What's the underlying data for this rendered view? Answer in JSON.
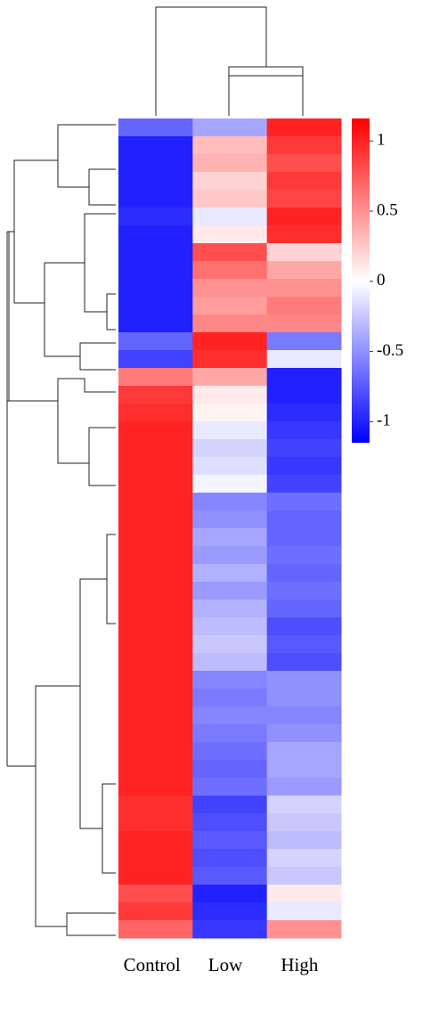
{
  "chart_data": {
    "type": "heatmap",
    "x": [
      "Control",
      "Low",
      "High"
    ],
    "values": [
      [
        -0.7,
        -0.4,
        1.0
      ],
      [
        -1.0,
        0.3,
        0.9
      ],
      [
        -1.0,
        0.35,
        0.8
      ],
      [
        -1.0,
        0.2,
        0.9
      ],
      [
        -1.0,
        0.25,
        0.85
      ],
      [
        -0.95,
        -0.1,
        1.0
      ],
      [
        -1.0,
        0.1,
        0.95
      ],
      [
        -1.0,
        0.8,
        0.2
      ],
      [
        -1.0,
        0.65,
        0.4
      ],
      [
        -1.0,
        0.5,
        0.5
      ],
      [
        -1.0,
        0.45,
        0.6
      ],
      [
        -1.0,
        0.55,
        0.55
      ],
      [
        -0.7,
        1.0,
        -0.6
      ],
      [
        -0.85,
        0.95,
        -0.1
      ],
      [
        0.6,
        0.4,
        -1.0
      ],
      [
        0.9,
        0.1,
        -1.0
      ],
      [
        0.95,
        0.05,
        -0.95
      ],
      [
        1.0,
        -0.1,
        -0.9
      ],
      [
        1.0,
        -0.2,
        -0.85
      ],
      [
        1.0,
        -0.15,
        -0.9
      ],
      [
        1.0,
        -0.05,
        -0.85
      ],
      [
        1.0,
        -0.55,
        -0.65
      ],
      [
        1.0,
        -0.5,
        -0.7
      ],
      [
        1.0,
        -0.4,
        -0.7
      ],
      [
        1.0,
        -0.45,
        -0.65
      ],
      [
        1.0,
        -0.35,
        -0.7
      ],
      [
        1.0,
        -0.45,
        -0.65
      ],
      [
        1.0,
        -0.35,
        -0.7
      ],
      [
        1.0,
        -0.3,
        -0.8
      ],
      [
        1.0,
        -0.25,
        -0.75
      ],
      [
        1.0,
        -0.3,
        -0.8
      ],
      [
        1.0,
        -0.55,
        -0.5
      ],
      [
        1.0,
        -0.6,
        -0.5
      ],
      [
        1.0,
        -0.55,
        -0.55
      ],
      [
        1.0,
        -0.6,
        -0.5
      ],
      [
        1.0,
        -0.65,
        -0.4
      ],
      [
        1.0,
        -0.7,
        -0.4
      ],
      [
        1.0,
        -0.65,
        -0.45
      ],
      [
        0.95,
        -0.85,
        -0.2
      ],
      [
        0.95,
        -0.8,
        -0.25
      ],
      [
        1.0,
        -0.75,
        -0.3
      ],
      [
        1.0,
        -0.8,
        -0.2
      ],
      [
        1.0,
        -0.75,
        -0.25
      ],
      [
        0.8,
        -1.0,
        0.1
      ],
      [
        0.9,
        -0.95,
        -0.1
      ],
      [
        0.7,
        -0.9,
        0.5
      ]
    ],
    "colors": [
      "#0000ff",
      "#ffffff",
      "#ff0000"
    ],
    "clim": [
      -1.15,
      1.16
    ],
    "cticks": [
      1,
      0.5,
      0,
      -0.5,
      -1
    ]
  }
}
